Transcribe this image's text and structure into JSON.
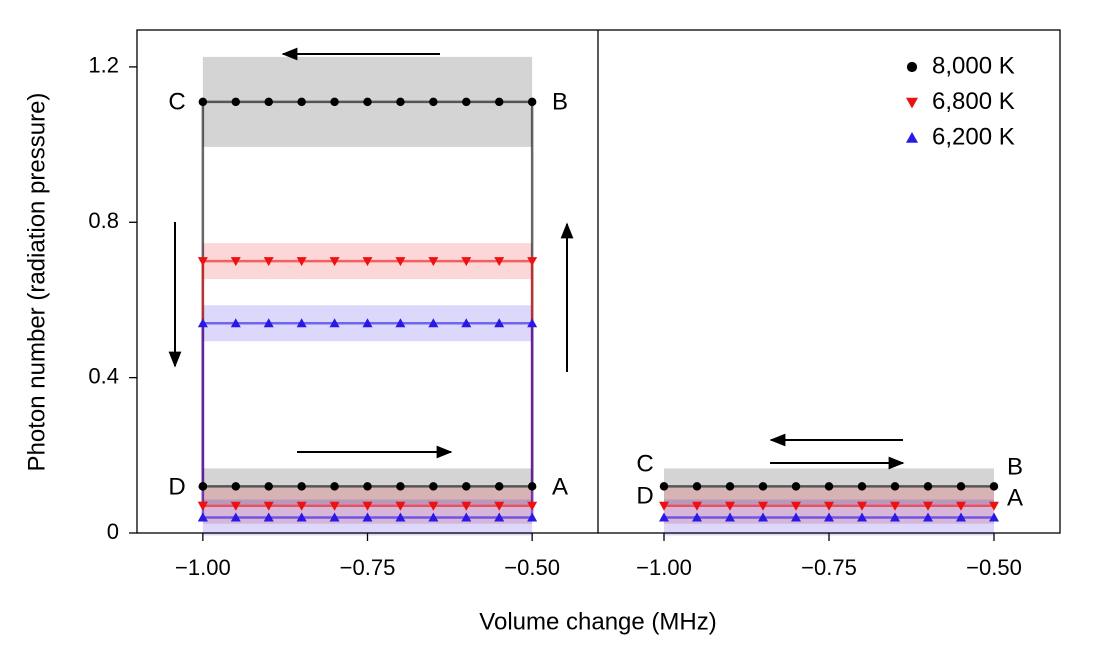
{
  "chart_data": [
    {
      "type": "line",
      "ylabel": "Photon number (radiation pressure)",
      "xlabel": "Volume change (MHz)",
      "x": [
        -1,
        -0.95,
        -0.9,
        -0.85,
        -0.8,
        -0.75,
        -0.7,
        -0.65,
        -0.6,
        -0.55,
        -0.5,
        -0.5,
        -0.55,
        -0.6,
        -0.65,
        -0.7,
        -0.75,
        -0.8,
        -0.85,
        -0.9,
        -0.95,
        -1,
        -1
      ],
      "series": [
        {
          "name": "8,000 K",
          "color": "#000000",
          "marker": "circle",
          "values": [
            0.12,
            0.12,
            0.12,
            0.12,
            0.12,
            0.12,
            0.12,
            0.12,
            0.12,
            0.12,
            0.12,
            1.11,
            1.11,
            1.11,
            1.11,
            1.11,
            1.11,
            1.11,
            1.11,
            1.11,
            1.11,
            1.11,
            0.12
          ]
        },
        {
          "name": "6,800 K",
          "color": "#ee1111",
          "marker": "triangle-down",
          "values": [
            0.07,
            0.07,
            0.07,
            0.07,
            0.07,
            0.07,
            0.07,
            0.07,
            0.07,
            0.07,
            0.07,
            0.7,
            0.7,
            0.7,
            0.7,
            0.7,
            0.7,
            0.7,
            0.7,
            0.7,
            0.7,
            0.7,
            0.07
          ]
        },
        {
          "name": "6,200 K",
          "color": "#2a18e6",
          "marker": "triangle-up",
          "values": [
            0.04,
            0.04,
            0.04,
            0.04,
            0.04,
            0.04,
            0.04,
            0.04,
            0.04,
            0.04,
            0.04,
            0.54,
            0.54,
            0.54,
            0.54,
            0.54,
            0.54,
            0.54,
            0.54,
            0.54,
            0.54,
            0.54,
            0.04
          ]
        }
      ],
      "annotations": [
        "C",
        "B",
        "D",
        "A"
      ],
      "xlim": [
        -1.1,
        -0.4
      ],
      "ylim": [
        0,
        1.295
      ],
      "xticks": [
        {
          "value": -1,
          "label": "−1.00"
        },
        {
          "value": -0.75,
          "label": "−0.75"
        },
        {
          "value": -0.5,
          "label": "−0.50"
        }
      ],
      "yticks": [
        0,
        0.4,
        0.8,
        1.2
      ],
      "legend": "upper right"
    },
    {
      "type": "line",
      "x": [
        -1,
        -0.95,
        -0.9,
        -0.85,
        -0.8,
        -0.75,
        -0.7,
        -0.65,
        -0.6,
        -0.55,
        -0.5
      ],
      "series": [
        {
          "color": "#000000",
          "marker": "circle",
          "values": [
            0.12,
            0.12,
            0.12,
            0.12,
            0.12,
            0.12,
            0.12,
            0.12,
            0.12,
            0.12,
            0.12
          ]
        },
        {
          "color": "#ee1111",
          "marker": "triangle-down",
          "values": [
            0.07,
            0.07,
            0.07,
            0.07,
            0.07,
            0.07,
            0.07,
            0.07,
            0.07,
            0.07,
            0.07
          ]
        },
        {
          "color": "#2a18e6",
          "marker": "triangle-up",
          "values": [
            0.04,
            0.04,
            0.04,
            0.04,
            0.04,
            0.04,
            0.04,
            0.04,
            0.04,
            0.04,
            0.04
          ]
        }
      ],
      "annotations": [
        "C",
        "B",
        "D",
        "A"
      ],
      "xlim": [
        -1.1,
        -0.4
      ],
      "ylim": [
        0,
        1.295
      ],
      "xticks": [
        {
          "value": -1,
          "label": "−1.00"
        },
        {
          "value": -0.75,
          "label": "−0.75"
        },
        {
          "value": -0.5,
          "label": "−0.50"
        }
      ]
    }
  ]
}
